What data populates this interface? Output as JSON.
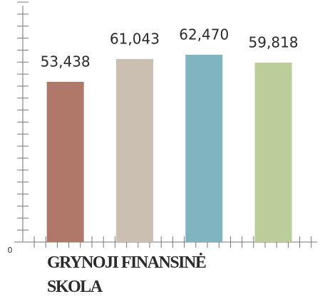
{
  "chart_data": {
    "type": "bar",
    "title": "GRYNOJI FINANSINĖ SKOLA",
    "categories": [
      null,
      null,
      null,
      null
    ],
    "values": [
      53438,
      61043,
      62470,
      59818
    ],
    "value_labels": [
      "53,438",
      "61,043",
      "62,470",
      "59,818"
    ],
    "colors": [
      "#b07868",
      "#cbbfb1",
      "#80b4c1",
      "#bccd9a"
    ],
    "ylim": [
      0,
      80000
    ],
    "yticks": [
      0
    ],
    "minor_yticks": [
      4000,
      8000,
      12000,
      16000,
      20000,
      24000,
      28000,
      32000,
      36000,
      40000,
      44000,
      48000,
      52000,
      56000,
      60000,
      64000,
      68000,
      72000,
      76000,
      80000
    ]
  }
}
